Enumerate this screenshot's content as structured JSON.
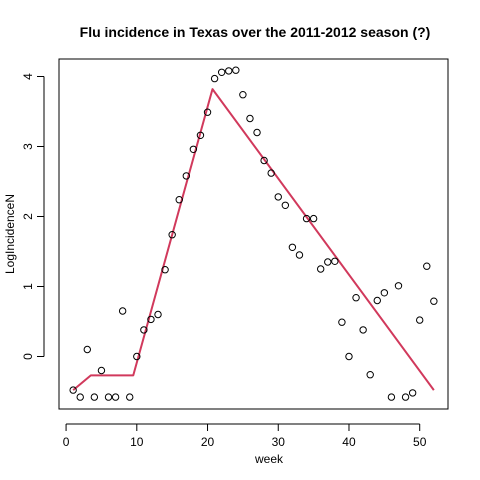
{
  "chart_data": {
    "type": "scatter",
    "title": "Flu incidence in Texas over the 2011-2012 season (?)",
    "xlabel": "week",
    "ylabel": "LogIncidenceN",
    "xlim": [
      -1,
      54
    ],
    "ylim": [
      -0.75,
      4.25
    ],
    "xticks": [
      0,
      10,
      20,
      30,
      40,
      50
    ],
    "yticks": [
      0,
      1,
      2,
      3,
      4
    ],
    "grid": false,
    "series": [
      {
        "type": "scatter",
        "marker": "open-circle",
        "color": "#000000",
        "points": [
          [
            1,
            -0.48
          ],
          [
            2,
            -0.58
          ],
          [
            3,
            0.1
          ],
          [
            4,
            -0.58
          ],
          [
            5,
            -0.2
          ],
          [
            6,
            -0.58
          ],
          [
            7,
            -0.58
          ],
          [
            8,
            0.65
          ],
          [
            9,
            -0.58
          ],
          [
            10,
            0.0
          ],
          [
            11,
            0.38
          ],
          [
            12,
            0.53
          ],
          [
            13,
            0.6
          ],
          [
            14,
            1.24
          ],
          [
            15,
            1.74
          ],
          [
            16,
            2.24
          ],
          [
            17,
            2.58
          ],
          [
            18,
            2.96
          ],
          [
            19,
            3.16
          ],
          [
            20,
            3.49
          ],
          [
            21,
            3.97
          ],
          [
            22,
            4.06
          ],
          [
            23,
            4.08
          ],
          [
            24,
            4.09
          ],
          [
            25,
            3.74
          ],
          [
            26,
            3.4
          ],
          [
            27,
            3.2
          ],
          [
            28,
            2.8
          ],
          [
            29,
            2.62
          ],
          [
            30,
            2.28
          ],
          [
            31,
            2.16
          ],
          [
            32,
            1.56
          ],
          [
            33,
            1.45
          ],
          [
            34,
            1.97
          ],
          [
            35,
            1.97
          ],
          [
            36,
            1.25
          ],
          [
            37,
            1.35
          ],
          [
            38,
            1.36
          ],
          [
            39,
            0.49
          ],
          [
            40,
            0.0
          ],
          [
            41,
            0.84
          ],
          [
            42,
            0.38
          ],
          [
            43,
            -0.26
          ],
          [
            44,
            0.8
          ],
          [
            45,
            0.91
          ],
          [
            46,
            -0.58
          ],
          [
            47,
            1.01
          ],
          [
            48,
            -0.58
          ],
          [
            49,
            -0.52
          ],
          [
            50,
            0.52
          ],
          [
            51,
            1.29
          ],
          [
            52,
            0.79
          ]
        ]
      },
      {
        "type": "line",
        "color": "#d1395c",
        "points": [
          [
            1,
            -0.48
          ],
          [
            3.5,
            -0.27
          ],
          [
            9.5,
            -0.27
          ],
          [
            20.7,
            3.82
          ],
          [
            52,
            -0.48
          ]
        ]
      }
    ]
  }
}
